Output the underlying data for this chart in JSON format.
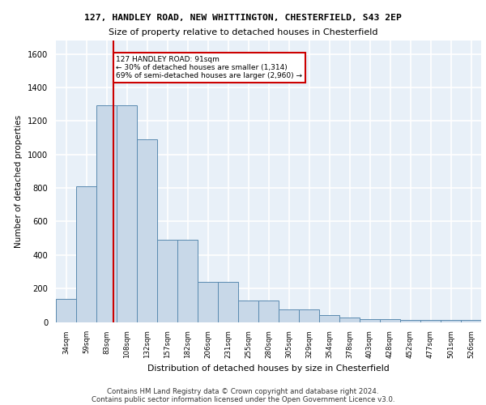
{
  "title1": "127, HANDLEY ROAD, NEW WHITTINGTON, CHESTERFIELD, S43 2EP",
  "title2": "Size of property relative to detached houses in Chesterfield",
  "xlabel": "Distribution of detached houses by size in Chesterfield",
  "ylabel": "Number of detached properties",
  "bar_labels": [
    "34sqm",
    "59sqm",
    "83sqm",
    "108sqm",
    "132sqm",
    "157sqm",
    "182sqm",
    "206sqm",
    "231sqm",
    "255sqm",
    "280sqm",
    "305sqm",
    "329sqm",
    "354sqm",
    "378sqm",
    "403sqm",
    "428sqm",
    "452sqm",
    "477sqm",
    "501sqm",
    "526sqm"
  ],
  "bar_values": [
    140,
    810,
    1295,
    1295,
    1090,
    490,
    490,
    240,
    240,
    130,
    130,
    75,
    75,
    40,
    25,
    15,
    15,
    10,
    10,
    10,
    10
  ],
  "bar_color": "#c8d8e8",
  "bar_edge_color": "#5a8ab0",
  "red_line_color": "#cc0000",
  "annotation_text": "127 HANDLEY ROAD: 91sqm\n← 30% of detached houses are smaller (1,314)\n69% of semi-detached houses are larger (2,960) →",
  "annotation_box_color": "#ffffff",
  "annotation_box_edge": "#cc0000",
  "ylim": [
    0,
    1680
  ],
  "yticks": [
    0,
    200,
    400,
    600,
    800,
    1000,
    1200,
    1400,
    1600
  ],
  "footer1": "Contains HM Land Registry data © Crown copyright and database right 2024.",
  "footer2": "Contains public sector information licensed under the Open Government Licence v3.0.",
  "bg_color": "#e8f0f8",
  "grid_color": "#ffffff",
  "red_line_bar_index": 2.32
}
